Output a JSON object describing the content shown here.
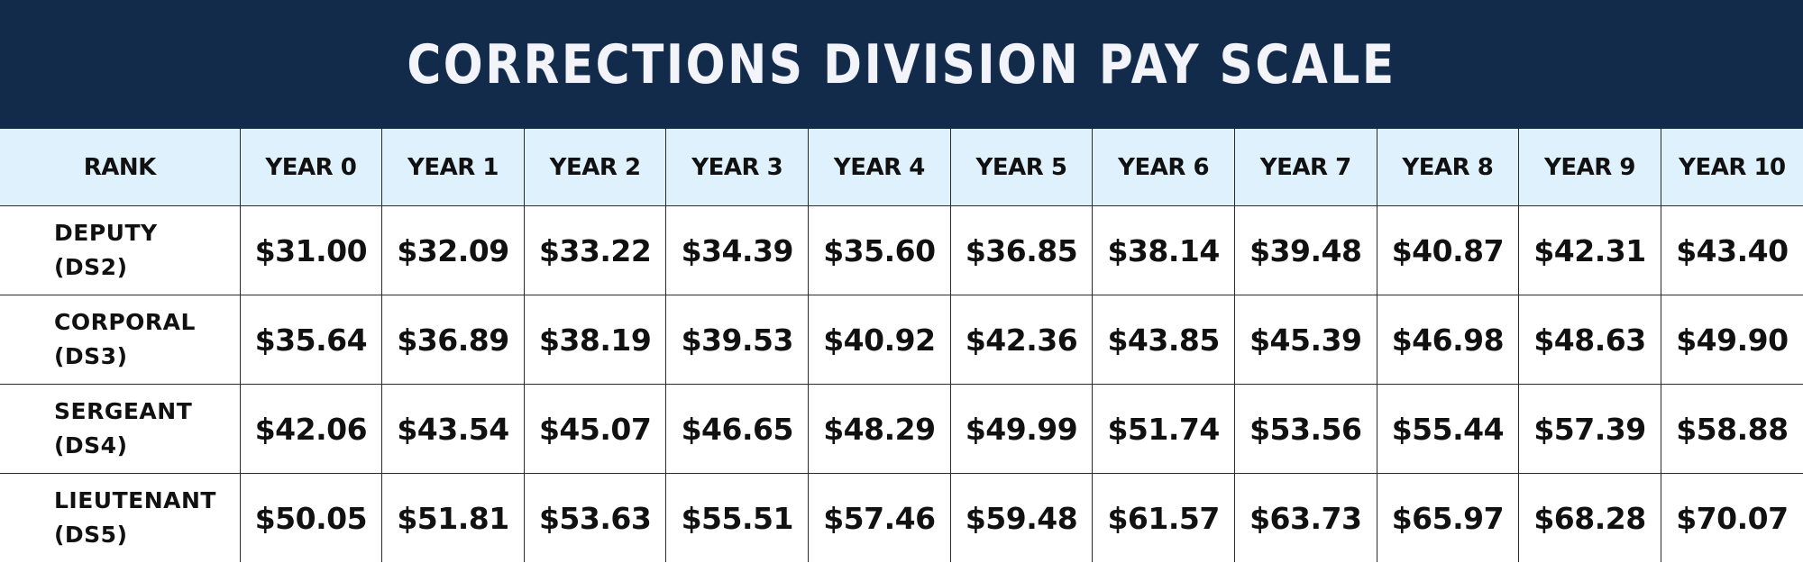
{
  "title": "CORRECTIONS DIVISION PAY SCALE",
  "colors": {
    "title_bg": "#132b4b",
    "header_bg": "#dff1fc",
    "title_text": "#f2f4fa"
  },
  "columns": [
    "RANK",
    "YEAR 0",
    "YEAR 1",
    "YEAR 2",
    "YEAR 3",
    "YEAR 4",
    "YEAR 5",
    "YEAR 6",
    "YEAR 7",
    "YEAR 8",
    "YEAR 9",
    "YEAR 10"
  ],
  "rows": [
    {
      "rank": "DEPUTY",
      "grade": "(DS2)",
      "rates": [
        "$31.00",
        "$32.09",
        "$33.22",
        "$34.39",
        "$35.60",
        "$36.85",
        "$38.14",
        "$39.48",
        "$40.87",
        "$42.31",
        "$43.40"
      ]
    },
    {
      "rank": "CORPORAL",
      "grade": "(DS3)",
      "rates": [
        "$35.64",
        "$36.89",
        "$38.19",
        "$39.53",
        "$40.92",
        "$42.36",
        "$43.85",
        "$45.39",
        "$46.98",
        "$48.63",
        "$49.90"
      ]
    },
    {
      "rank": "SERGEANT",
      "grade": "(DS4)",
      "rates": [
        "$42.06",
        "$43.54",
        "$45.07",
        "$46.65",
        "$48.29",
        "$49.99",
        "$51.74",
        "$53.56",
        "$55.44",
        "$57.39",
        "$58.88"
      ]
    },
    {
      "rank": "LIEUTENANT",
      "grade": "(DS5)",
      "rates": [
        "$50.05",
        "$51.81",
        "$53.63",
        "$55.51",
        "$57.46",
        "$59.48",
        "$61.57",
        "$63.73",
        "$65.97",
        "$68.28",
        "$70.07"
      ]
    }
  ]
}
